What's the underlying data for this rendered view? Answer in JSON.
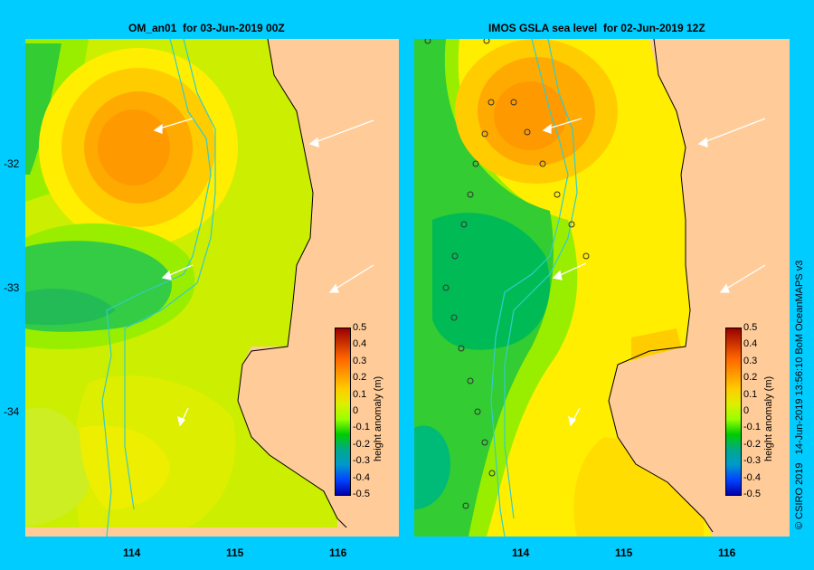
{
  "panels": [
    {
      "title": "OM_an01  for 03-Jun-2019 00Z"
    },
    {
      "title": "IMOS GSLA sea level  for 02-Jun-2019 12Z"
    }
  ],
  "y_ticks": [
    "-32",
    "-33",
    "-34"
  ],
  "x_ticks": [
    "114",
    "115",
    "116"
  ],
  "colorbar": {
    "title": "height anomaly (m)",
    "labels": [
      "0.5",
      "0.4",
      "0.3",
      "0.2",
      "0.1",
      "0",
      "-0.1",
      "-0.2",
      "-0.3",
      "-0.4",
      "-0.5"
    ],
    "colors": [
      "#990000",
      "#cc3300",
      "#ff6600",
      "#ff9900",
      "#ffcc00",
      "#ddee00",
      "#99ff00",
      "#00cc00",
      "#00aa88",
      "#0099cc",
      "#0044ff",
      "#0000aa"
    ]
  },
  "credit": "© CSIRO 2019   14-Jun-2019 13:56:10 BoM OceanMAPS v3",
  "colors": {
    "background": "#00ccff",
    "land": "#ffcc99",
    "coastline": "#000000",
    "isobath": "#33cccc",
    "vector": "#ffffff"
  }
}
